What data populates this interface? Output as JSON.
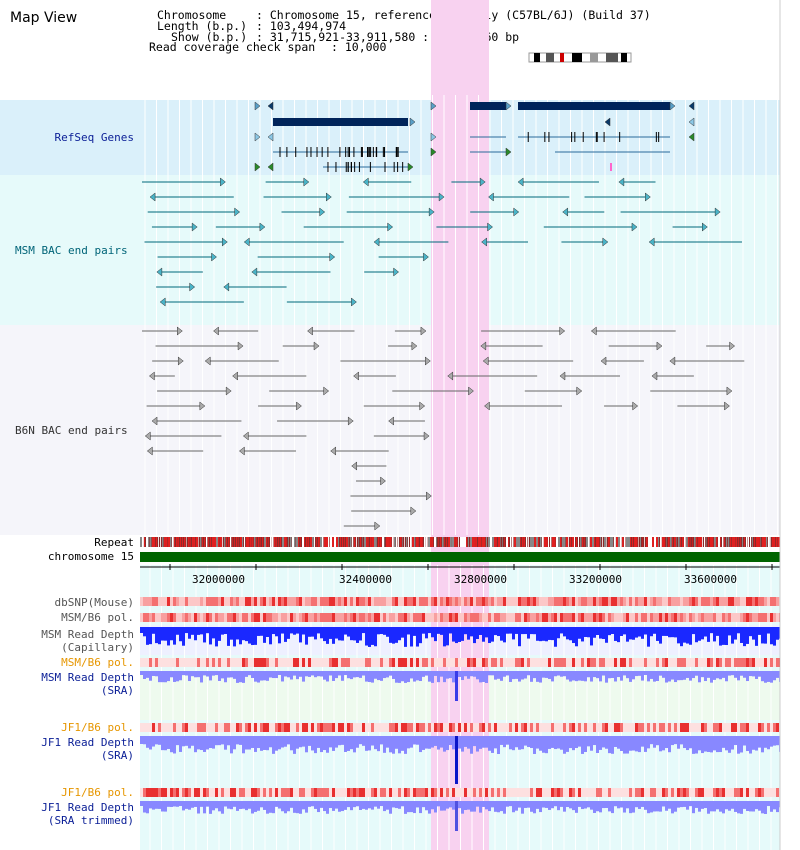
{
  "title": "Map View",
  "header": {
    "chromosome_key": "Chromosome",
    "chromosome_value": ": Chromosome 15, reference assembly (C57BL/6J) (Build 37)",
    "length_key": "Length (b.p.)",
    "length_value": ": 103,494,974",
    "show_key": "Show (b.p.)",
    "show_value": ": 31,715,921-33,911,580 : 2,195,660 bp",
    "coverage_key": "Read coverage check span",
    "coverage_value": ": 10,000"
  },
  "tracks": {
    "refseq": "RefSeq Genes",
    "msm_bac": "MSM BAC end pairs",
    "b6n_bac": "B6N BAC end pairs",
    "repeat": "Repeat",
    "chromosome": "chromosome 15",
    "dbsnp": "dbSNP(Mouse)",
    "msm_b6_pol_1": "MSM/B6 pol.",
    "msm_read_depth_cap_1": "MSM Read Depth",
    "msm_read_depth_cap_2": "(Capillary)",
    "msm_b6_pol_2": "MSM/B6 pol.",
    "msm_read_depth_sra_1": "MSM Read Depth",
    "msm_read_depth_sra_2": "(SRA)",
    "jf1_b6_pol_1": "JF1/B6 pol.",
    "jf1_read_depth_sra_1": "JF1 Read Depth",
    "jf1_read_depth_sra_2": "(SRA)",
    "jf1_b6_pol_2": "JF1/B6 pol.",
    "jf1_read_depth_trim_1": "JF1 Read Depth",
    "jf1_read_depth_trim_2": "(SRA trimmed)"
  },
  "axis_ticks": [
    "32000000",
    "32400000",
    "32800000",
    "33200000",
    "33600000"
  ],
  "colors": {
    "refseq_bg": "#daf0fa",
    "msm_bg": "#e6fafa",
    "b6n_bg": "#f5f5fa",
    "highlight": "#f8d2f0",
    "gene_dark": "#00245a",
    "msm_line": "#00687a",
    "b6n_line": "#666666",
    "label_navy": "#0a1e96",
    "label_teal": "#006478",
    "label_orange": "#e69600",
    "chrom_green": "#006400"
  }
}
